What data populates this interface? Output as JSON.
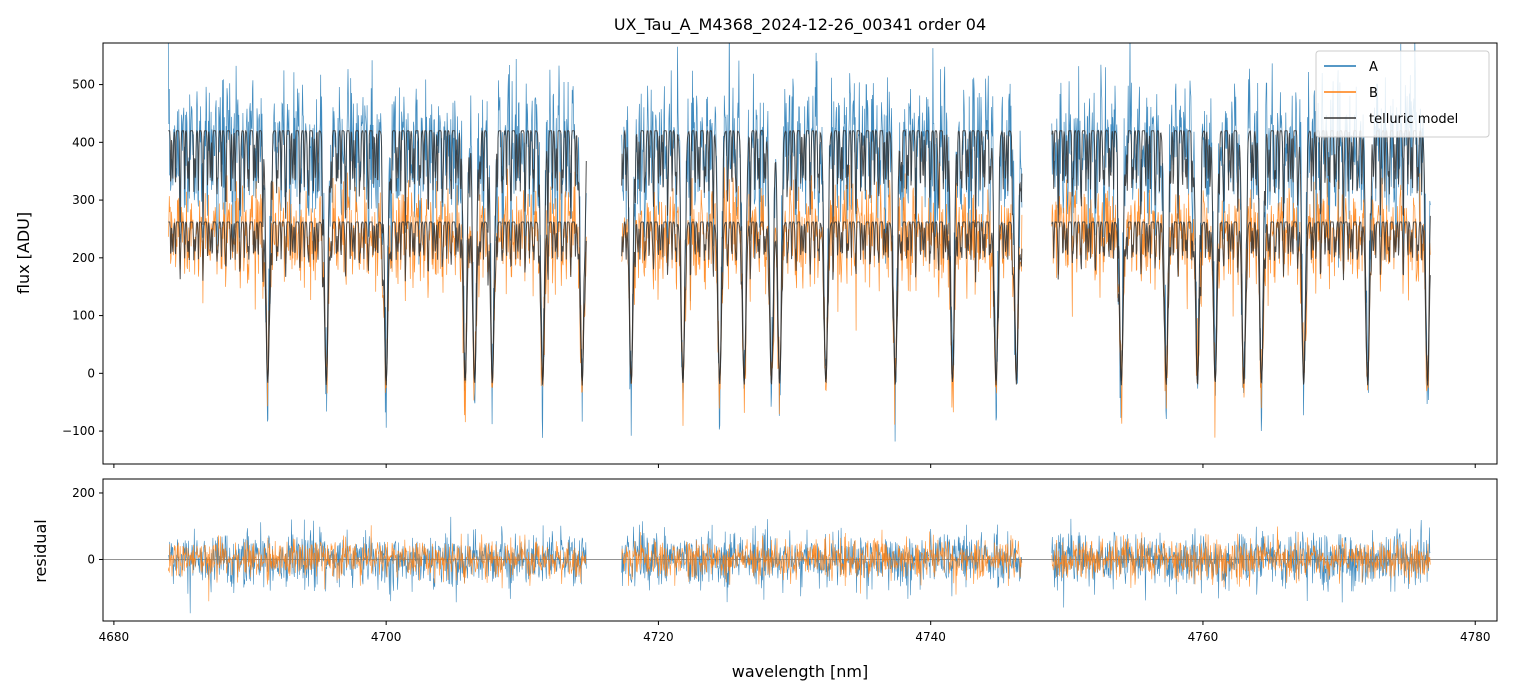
{
  "chart_data": {
    "type": "line",
    "title": "UX_Tau_A_M4368_2024-12-26_00341  order 04",
    "xlabel": "wavelength [nm]",
    "xlim": [
      4679.2,
      4781.6
    ],
    "x_ticks": [
      4680,
      4700,
      4720,
      4740,
      4760,
      4780
    ],
    "x_tick_labels": [
      "4680",
      "4700",
      "4720",
      "4740",
      "4760",
      "4780"
    ],
    "legend_position": "top-right",
    "colors": {
      "A": "#1f77b4",
      "B": "#ff7f0e",
      "telluric": "#333333",
      "zero_line": "#555555"
    },
    "segments": [
      [
        4684.0,
        4714.7
      ],
      [
        4717.3,
        4746.7
      ],
      [
        4748.9,
        4776.7
      ]
    ],
    "panels": [
      {
        "role": "flux",
        "ylabel": "flux [ADU]",
        "ylim": [
          -157,
          572
        ],
        "y_ticks": [
          -100,
          0,
          100,
          200,
          300,
          400,
          500
        ],
        "y_tick_labels": [
          "−100",
          "0",
          "100",
          "200",
          "300",
          "400",
          "500"
        ],
        "series": [
          {
            "name": "A",
            "color": "#1f77b4",
            "continuum": 420,
            "noise": 55
          },
          {
            "name": "B",
            "color": "#ff7f0e",
            "continuum": 262,
            "noise": 35
          },
          {
            "name": "telluric model",
            "color": "#333333",
            "continuum": [
              420,
              262
            ],
            "noise": 0
          }
        ],
        "absorption_lines_nm": [
          4691.3,
          4695.6,
          4700.0,
          4705.8,
          4706.5,
          4707.8,
          4711.5,
          4714.4,
          4718.0,
          4721.8,
          4724.5,
          4726.3,
          4728.3,
          4728.9,
          4732.3,
          4737.4,
          4741.6,
          4744.8,
          4746.3,
          4754.0,
          4757.3,
          4759.6,
          4760.9,
          4763.0,
          4764.3,
          4767.4,
          4772.1,
          4776.5
        ]
      },
      {
        "role": "residual",
        "ylabel": "residual",
        "ylim": [
          -185,
          242
        ],
        "y_ticks": [
          0,
          200
        ],
        "y_tick_labels": [
          "0",
          "200"
        ],
        "series": [
          {
            "name": "A",
            "color": "#1f77b4",
            "noise": 40
          },
          {
            "name": "B",
            "color": "#ff7f0e",
            "noise": 30
          }
        ],
        "zero_line": 0
      }
    ]
  }
}
